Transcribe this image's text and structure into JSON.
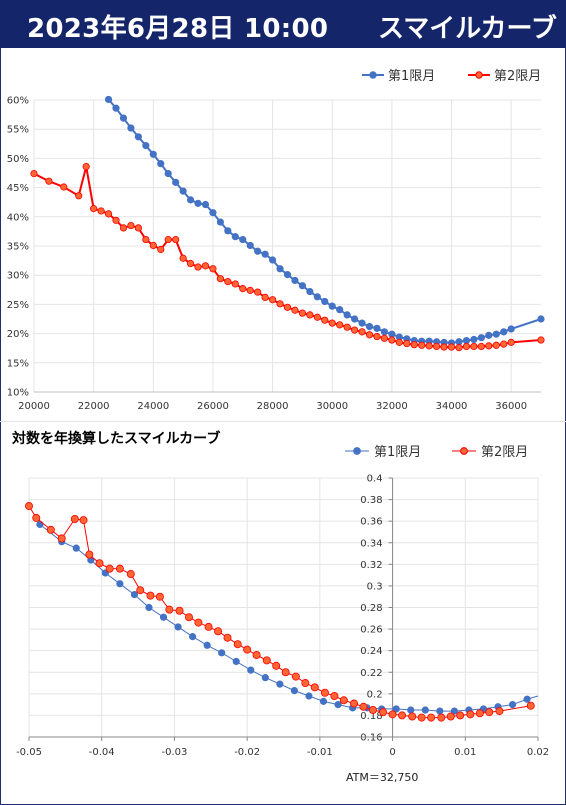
{
  "header": {
    "datetime": "2023年6月28日 10:00",
    "title": "スマイルカーブ"
  },
  "colors": {
    "series1": "#4472c4",
    "series2": "#ff0000",
    "marker2_fill": "#ff6633",
    "header_bg": "#14256a"
  },
  "chart_data": [
    {
      "type": "line",
      "title": "",
      "legend": {
        "position": "top-right"
      },
      "grid": true,
      "xlim": [
        20000,
        37000
      ],
      "ylim": [
        10,
        60
      ],
      "xticks": [
        20000,
        22000,
        24000,
        26000,
        28000,
        30000,
        32000,
        34000,
        36000
      ],
      "yticks": [
        10,
        15,
        20,
        25,
        30,
        35,
        40,
        45,
        50,
        55,
        60
      ],
      "ytick_suffix": "%",
      "series": [
        {
          "name": "第1限月",
          "x": [
            22500,
            22750,
            23000,
            23250,
            23500,
            23750,
            24000,
            24250,
            24500,
            24750,
            25000,
            25250,
            25500,
            25750,
            26000,
            26250,
            26500,
            26750,
            27000,
            27250,
            27500,
            27750,
            28000,
            28250,
            28500,
            28750,
            29000,
            29250,
            29500,
            29750,
            30000,
            30250,
            30500,
            30750,
            31000,
            31250,
            31500,
            31750,
            32000,
            32250,
            32500,
            32750,
            33000,
            33250,
            33500,
            33750,
            34000,
            34250,
            34500,
            34750,
            35000,
            35250,
            35500,
            35750,
            36000,
            37000
          ],
          "y": [
            60.1,
            58.6,
            56.9,
            55.2,
            53.7,
            52.2,
            50.7,
            49.1,
            47.4,
            45.9,
            44.4,
            42.9,
            42.3,
            42.1,
            40.7,
            39.1,
            37.6,
            36.6,
            36.1,
            35.1,
            34.1,
            33.6,
            32.6,
            31.1,
            30.1,
            29.1,
            28.2,
            27.2,
            26.3,
            25.5,
            24.7,
            24.1,
            23.2,
            22.5,
            21.8,
            21.2,
            20.9,
            20.3,
            19.9,
            19.4,
            19.1,
            18.8,
            18.7,
            18.7,
            18.6,
            18.5,
            18.4,
            18.6,
            18.8,
            19.0,
            19.3,
            19.7,
            19.9,
            20.3,
            20.8,
            22.5
          ]
        },
        {
          "name": "第2限月",
          "x": [
            20000,
            20500,
            21000,
            21500,
            21750,
            22000,
            22250,
            22500,
            22750,
            23000,
            23250,
            23500,
            23750,
            24000,
            24250,
            24500,
            24750,
            25000,
            25250,
            25500,
            25750,
            26000,
            26250,
            26500,
            26750,
            27000,
            27250,
            27500,
            27750,
            28000,
            28250,
            28500,
            28750,
            29000,
            29250,
            29500,
            29750,
            30000,
            30250,
            30500,
            30750,
            31000,
            31250,
            31500,
            31750,
            32000,
            32250,
            32500,
            32750,
            33000,
            33250,
            33500,
            33750,
            34000,
            34250,
            34500,
            34750,
            35000,
            35250,
            35500,
            35750,
            36000,
            37000
          ],
          "y": [
            47.4,
            46.1,
            45.1,
            43.6,
            48.6,
            41.4,
            41.0,
            40.5,
            39.4,
            38.1,
            38.5,
            38.1,
            36.1,
            35.1,
            34.4,
            36.1,
            36.1,
            32.9,
            32.0,
            31.4,
            31.6,
            31.1,
            29.4,
            28.9,
            28.5,
            27.7,
            27.4,
            27.1,
            26.2,
            25.8,
            25.1,
            24.5,
            24.0,
            23.5,
            23.2,
            22.8,
            22.3,
            21.8,
            21.5,
            21.1,
            20.6,
            20.3,
            19.8,
            19.5,
            19.2,
            18.9,
            18.5,
            18.3,
            18.1,
            18.0,
            17.9,
            17.8,
            17.7,
            17.7,
            17.6,
            17.8,
            17.8,
            17.8,
            17.9,
            18.0,
            18.2,
            18.5,
            18.9
          ]
        }
      ]
    },
    {
      "type": "scatter",
      "title": "対数を年換算したスマイルカーブ",
      "legend": {
        "position": "top-right"
      },
      "grid": true,
      "xlim": [
        -0.05,
        0.02
      ],
      "ylim": [
        0.16,
        0.4
      ],
      "xticks": [
        -0.05,
        -0.04,
        -0.03,
        -0.02,
        -0.01,
        0,
        0.01,
        0.02
      ],
      "yticks": [
        0.16,
        0.18,
        0.2,
        0.22,
        0.24,
        0.26,
        0.28,
        0.3,
        0.32,
        0.34,
        0.36,
        0.38,
        0.4
      ],
      "annotation": "ATM＝32,750",
      "series": [
        {
          "name": "第1限月",
          "x": [
            -0.0485,
            -0.0455,
            -0.0435,
            -0.0415,
            -0.0395,
            -0.0375,
            -0.0355,
            -0.0335,
            -0.0315,
            -0.0295,
            -0.0275,
            -0.0255,
            -0.0235,
            -0.0215,
            -0.0195,
            -0.0175,
            -0.0155,
            -0.0135,
            -0.0115,
            -0.0095,
            -0.0075,
            -0.0055,
            -0.0035,
            -0.0015,
            0.0005,
            0.0025,
            0.0045,
            0.0065,
            0.0085,
            0.0105,
            0.0125,
            0.0145,
            0.0165,
            0.0185
          ],
          "y": [
            0.357,
            0.341,
            0.335,
            0.324,
            0.312,
            0.302,
            0.292,
            0.28,
            0.271,
            0.262,
            0.253,
            0.245,
            0.238,
            0.23,
            0.222,
            0.215,
            0.209,
            0.203,
            0.198,
            0.193,
            0.19,
            0.187,
            0.187,
            0.186,
            0.186,
            0.185,
            0.185,
            0.184,
            0.184,
            0.185,
            0.186,
            0.188,
            0.19,
            0.195
          ]
        },
        {
          "name": "第2限月",
          "x": [
            -0.05,
            -0.049,
            -0.047,
            -0.0455,
            -0.0437,
            -0.0425,
            -0.0417,
            -0.0403,
            -0.0389,
            -0.0375,
            -0.036,
            -0.0347,
            -0.0333,
            -0.032,
            -0.0307,
            -0.0293,
            -0.028,
            -0.0267,
            -0.0253,
            -0.024,
            -0.0227,
            -0.0213,
            -0.02,
            -0.0187,
            -0.0173,
            -0.016,
            -0.0147,
            -0.0133,
            -0.012,
            -0.0107,
            -0.0093,
            -0.008,
            -0.0067,
            -0.0053,
            -0.004,
            -0.0027,
            -0.0013,
            0.0,
            0.0013,
            0.0027,
            0.004,
            0.0053,
            0.0067,
            0.008,
            0.0093,
            0.0107,
            0.012,
            0.0133,
            0.0147,
            0.019
          ],
          "y": [
            0.374,
            0.363,
            0.352,
            0.344,
            0.362,
            0.361,
            0.329,
            0.321,
            0.316,
            0.316,
            0.311,
            0.296,
            0.291,
            0.29,
            0.278,
            0.277,
            0.271,
            0.266,
            0.262,
            0.258,
            0.252,
            0.246,
            0.241,
            0.236,
            0.231,
            0.226,
            0.22,
            0.216,
            0.21,
            0.206,
            0.201,
            0.198,
            0.194,
            0.191,
            0.188,
            0.185,
            0.183,
            0.181,
            0.18,
            0.179,
            0.178,
            0.178,
            0.178,
            0.179,
            0.18,
            0.181,
            0.182,
            0.183,
            0.184,
            0.189
          ]
        }
      ]
    }
  ]
}
